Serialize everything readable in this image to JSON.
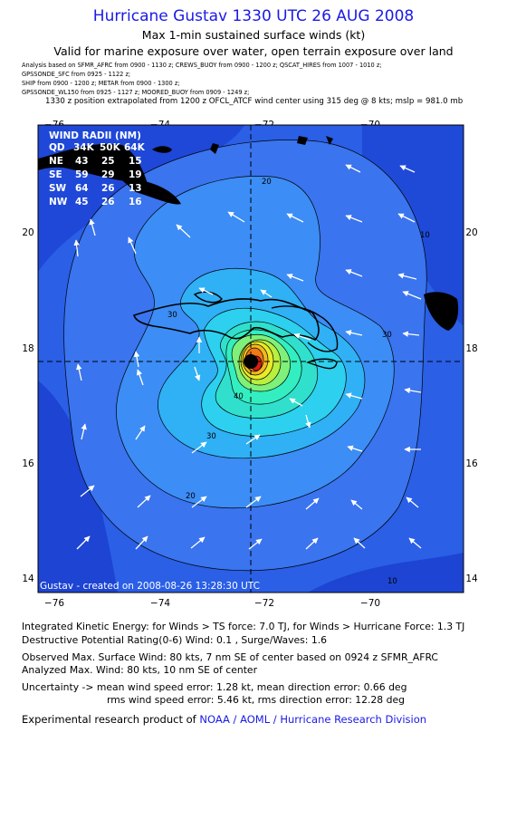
{
  "header": {
    "title": "Hurricane Gustav 1330 UTC 26 AUG 2008",
    "subtitle1": "Max 1-min sustained surface winds (kt)",
    "subtitle2": "Valid for marine exposure over water, open terrain exposure over land",
    "sources": [
      "Analysis based on  SFMR_AFRC from 0900 - 1130 z;  CREWS_BUOY from 0900 - 1200 z;  QSCAT_HIRES from 1007 - 1010 z;",
      "GPSSONDE_SFC from 0925 - 1122 z;",
      "SHIP from 0900 - 1200 z;  METAR from 0900 - 1300 z;",
      "GPSSONDE_WL150 from 0925 - 1127 z;  MOORED_BUOY from 0909 - 1249 z;"
    ],
    "position_note": "1330 z position extrapolated from 1200 z OFCL_ATCF wind center using 315 deg @ 8 kts; mslp = 981.0 mb"
  },
  "map": {
    "lon_labels": [
      "−76",
      "−74",
      "−72",
      "−70"
    ],
    "lat_labels": [
      "20",
      "18",
      "16",
      "14"
    ],
    "contour_labels": [
      "20",
      "30",
      "30",
      "40",
      "20",
      "10",
      "10",
      "30"
    ],
    "wind_radii": {
      "title": "WIND RADII (NM)",
      "header": [
        "QD",
        "34K",
        "50K",
        "64K"
      ],
      "rows": [
        [
          "NE",
          "43",
          "25",
          "15"
        ],
        [
          "SE",
          "59",
          "29",
          "19"
        ],
        [
          "SW",
          "64",
          "26",
          "13"
        ],
        [
          "NW",
          "45",
          "26",
          "16"
        ]
      ]
    },
    "credit": "Gustav - created on 2008-08-26 13:28:30 UTC",
    "colors": {
      "land": "#000000",
      "ocean_dark": "#1f4fe0",
      "peak": "#d71c1c"
    }
  },
  "footer": {
    "ike": "Integrated Kinetic Energy:  for Winds > TS force: 7.0 TJ,  for Winds > Hurricane Force: 1.3 TJ",
    "dpr": "Destructive Potential Rating(0-6)   Wind: 0.1 , Surge/Waves: 1.6",
    "obs_max": "Observed Max. Surface Wind: 80 kts, 7 nm SE of center based on 0924 z SFMR_AFRC",
    "ana_max": "Analyzed Max. Wind: 80 kts, 10 nm SE of center",
    "unc1": "Uncertainty -> mean wind speed error: 1.28 kt,   mean direction error: 0.66 deg",
    "unc2": "rms wind speed error: 5.46 kt,   rms direction error: 12.28 deg",
    "product_prefix": "Experimental research product of",
    "product_link": "NOAA / AOML / Hurricane Research Division"
  }
}
